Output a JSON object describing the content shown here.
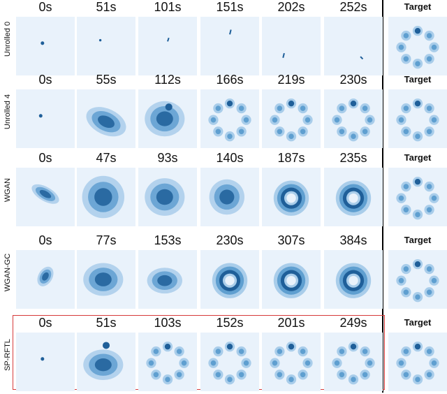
{
  "rows": [
    {
      "label": "Unrolled 0",
      "times": [
        "0s",
        "51s",
        "101s",
        "151s",
        "202s",
        "252s"
      ],
      "target": "Target"
    },
    {
      "label": "Unrolled 4",
      "times": [
        "0s",
        "55s",
        "112s",
        "166s",
        "219s",
        "230s"
      ],
      "target": "Target"
    },
    {
      "label": "WGAN",
      "times": [
        "0s",
        "47s",
        "93s",
        "140s",
        "187s",
        "235s"
      ],
      "target": "Target"
    },
    {
      "label": "WGAN-GC",
      "times": [
        "0s",
        "77s",
        "153s",
        "230s",
        "307s",
        "384s"
      ],
      "target": "Target"
    },
    {
      "label": "SP-RFTL",
      "times": [
        "0s",
        "51s",
        "103s",
        "152s",
        "201s",
        "249s"
      ],
      "target": "Target"
    }
  ],
  "colors": {
    "panel_bg": "#e9f2fb",
    "light": "#a9cdea",
    "mid": "#5f9fd0",
    "dark": "#1f5f99",
    "highlight_box": "#d63a3a"
  }
}
